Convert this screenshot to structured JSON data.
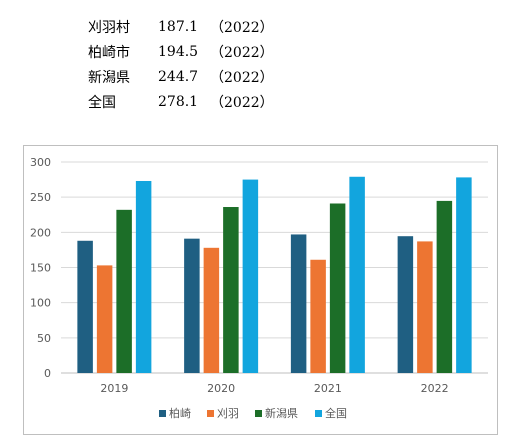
{
  "summary": [
    {
      "name": "刈羽村",
      "value": "187.1",
      "year": "（2022）"
    },
    {
      "name": "柏崎市",
      "value": "194.5",
      "year": "（2022）"
    },
    {
      "name": "新潟県",
      "value": "244.7",
      "year": "（2022）"
    },
    {
      "name": "全国",
      "value": "278.1",
      "year": "（2022）"
    }
  ],
  "chart_data": {
    "type": "bar",
    "title": "",
    "xlabel": "",
    "ylabel": "",
    "categories": [
      "2019",
      "2020",
      "2021",
      "2022"
    ],
    "ylim": [
      0,
      300
    ],
    "yticks": [
      0,
      50,
      100,
      150,
      200,
      250,
      300
    ],
    "grid": true,
    "legend_position": "bottom",
    "series": [
      {
        "name": "柏崎",
        "color": "#1f5f82",
        "values": [
          188,
          191,
          197,
          194.5
        ]
      },
      {
        "name": "刈羽",
        "color": "#ed7532",
        "values": [
          153,
          178,
          161,
          187.1
        ]
      },
      {
        "name": "新潟県",
        "color": "#1c6e28",
        "values": [
          232,
          236,
          241,
          244.7
        ]
      },
      {
        "name": "全国",
        "color": "#12a5de",
        "values": [
          273,
          275,
          279,
          278.1
        ]
      }
    ]
  }
}
